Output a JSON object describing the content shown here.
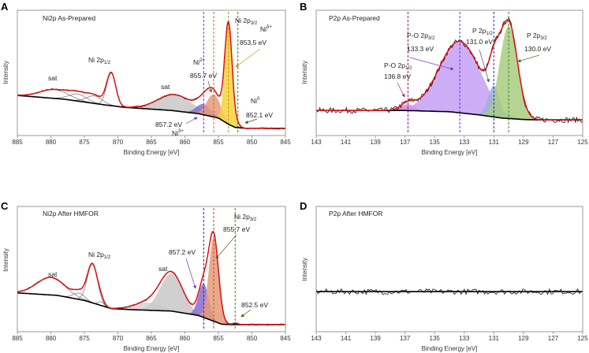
{
  "chart_data": [
    {
      "panel": "A",
      "type": "line",
      "title": "Ni2p As-Prepared",
      "xlabel": "Binding Energy [eV]",
      "ylabel": "Intensity",
      "xlim": [
        885,
        845
      ],
      "x_reversed": true,
      "xticks": [
        "885",
        "880",
        "875",
        "870",
        "865",
        "860",
        "855",
        "850",
        "845"
      ],
      "ylim": [
        0,
        1
      ],
      "background": [
        [
          885,
          0.32
        ],
        [
          878,
          0.29
        ],
        [
          872,
          0.245
        ],
        [
          869,
          0.225
        ],
        [
          862,
          0.2
        ],
        [
          858,
          0.175
        ],
        [
          855,
          0.14
        ],
        [
          853.5,
          0.09
        ],
        [
          852.5,
          0.065
        ],
        [
          851,
          0.058
        ],
        [
          845,
          0.057
        ]
      ],
      "components": [
        {
          "center": 879.5,
          "amp": 0.07,
          "fwhm": 5,
          "color": "#808080",
          "filled": false
        },
        {
          "center": 876,
          "amp": 0.055,
          "fwhm": 3.2,
          "color": "#808080",
          "filled": false
        },
        {
          "center": 873.5,
          "amp": 0.06,
          "fwhm": 2.8,
          "color": "#808080",
          "filled": false
        },
        {
          "center": 871,
          "amp": 0.26,
          "fwhm": 1.6,
          "color": "#808080",
          "filled": false
        },
        {
          "center": 861.5,
          "amp": 0.13,
          "fwhm": 6,
          "color": "#c8c8c8",
          "filled": true
        },
        {
          "center": 857.2,
          "amp": 0.085,
          "fwhm": 2.5,
          "color": "#8a6ad0",
          "filled": true
        },
        {
          "center": 855.7,
          "amp": 0.18,
          "fwhm": 2.4,
          "color": "#e89a78",
          "filled": true
        },
        {
          "center": 853.5,
          "amp": 0.8,
          "fwhm": 1.3,
          "color": "#f5d43a",
          "filled": true
        },
        {
          "center": 852.1,
          "amp": 0.02,
          "fwhm": 0.9,
          "color": "#a8d890",
          "filled": true
        }
      ],
      "markers": [
        {
          "x": 857.2,
          "color": "#7a3cc8"
        },
        {
          "x": 855.7,
          "color": "#d0703a"
        },
        {
          "x": 853.5,
          "color": "#c8901a"
        },
        {
          "x": 852.1,
          "color": "#4a8a30"
        }
      ],
      "annotations": {
        "p12": {
          "main": "Ni 2p",
          "sub": "1/2"
        },
        "sat1": "sat",
        "sat2": "sat",
        "ni2": {
          "main": "Ni",
          "sup": "2+"
        },
        "e8557": "855.7 eV",
        "p32": {
          "main": "Ni 2p",
          "sub": "3/2"
        },
        "nid": {
          "main": "Ni",
          "sup": "δ+"
        },
        "e8535": "853.5 eV",
        "ni0": {
          "main": "Ni",
          "sup": "0"
        },
        "e8521": "852.1 eV",
        "e8572": "857.2 eV",
        "ni3": {
          "main": "Ni",
          "sup": "3+"
        }
      },
      "colors": {
        "e8557": "#a0522d",
        "e8535": "#c8901a",
        "e8521": "#4a6a20",
        "e8572": "#7030c0"
      }
    },
    {
      "panel": "B",
      "type": "line",
      "title": "P2p As-Prepared",
      "xlabel": "Binding Energy [eV]",
      "ylabel": "Intensity",
      "xlim": [
        143,
        125
      ],
      "x_reversed": true,
      "xticks": [
        "143",
        "141",
        "139",
        "137",
        "135",
        "133",
        "131",
        "129",
        "127",
        "125"
      ],
      "ylim": [
        0,
        1
      ],
      "background": [
        [
          143,
          0.2
        ],
        [
          137,
          0.2
        ],
        [
          134,
          0.19
        ],
        [
          132,
          0.165
        ],
        [
          130.5,
          0.14
        ],
        [
          129,
          0.128
        ],
        [
          128,
          0.125
        ],
        [
          125,
          0.125
        ]
      ],
      "components": [
        {
          "center": 136.8,
          "amp": 0.05,
          "fwhm": 1.1,
          "color": "#e080e0",
          "filled": true
        },
        {
          "center": 133.3,
          "amp": 0.57,
          "fwhm": 3.3,
          "color": "#c4a0f4",
          "filled": true
        },
        {
          "center": 131.0,
          "amp": 0.25,
          "fwhm": 0.9,
          "color": "#9ab0e0",
          "filled": true
        },
        {
          "center": 130.0,
          "amp": 0.74,
          "fwhm": 1.4,
          "color": "#a8cc80",
          "filled": true
        }
      ],
      "markers": [
        {
          "x": 136.8,
          "color": "#a0208a"
        },
        {
          "x": 133.3,
          "color": "#7a3cd8"
        },
        {
          "x": 131.0,
          "color": "#2a40b0"
        },
        {
          "x": 130.0,
          "color": "#4a8a30"
        }
      ],
      "annotations": {
        "po32": {
          "main": "P-O 2p",
          "sub": "3/2"
        },
        "e1333": "133.3 eV",
        "p12": {
          "main": "P 2p",
          "sub": "1/2"
        },
        "e1310": "131.0 eV",
        "p32": {
          "main": "P 2p",
          "sub": "3/2"
        },
        "e1300": "130.0 eV",
        "po12": {
          "main": "P-O 2p",
          "sub": "1/2"
        },
        "e1368": "136.8 eV"
      },
      "colors": {
        "e1333": "#8040d0",
        "e1310": "#3050b0",
        "e1300": "#5a8020",
        "e1368": "#a0208a"
      }
    },
    {
      "panel": "C",
      "type": "line",
      "title": "Ni2p After HMFOR",
      "xlabel": "Binding Energy [eV]",
      "ylabel": "Intensity",
      "xlim": [
        885,
        845
      ],
      "x_reversed": true,
      "xticks": [
        "885",
        "880",
        "875",
        "870",
        "865",
        "860",
        "855",
        "850",
        "845"
      ],
      "ylim": [
        0,
        1
      ],
      "background": [
        [
          885,
          0.31
        ],
        [
          879,
          0.29
        ],
        [
          875,
          0.25
        ],
        [
          871,
          0.185
        ],
        [
          868,
          0.176
        ],
        [
          862,
          0.165
        ],
        [
          858,
          0.13
        ],
        [
          856,
          0.09
        ],
        [
          854.5,
          0.06
        ],
        [
          853,
          0.057
        ],
        [
          845,
          0.057
        ]
      ],
      "components": [
        {
          "center": 880,
          "amp": 0.14,
          "fwhm": 5,
          "color": "#808080",
          "filled": false
        },
        {
          "center": 875.8,
          "amp": 0.05,
          "fwhm": 2,
          "color": "#808080",
          "filled": false
        },
        {
          "center": 873.8,
          "amp": 0.31,
          "fwhm": 1.8,
          "color": "#808080",
          "filled": false
        },
        {
          "center": 872.5,
          "amp": 0.03,
          "fwhm": 1,
          "color": "#808080",
          "filled": false
        },
        {
          "center": 865.5,
          "amp": 0.06,
          "fwhm": 5,
          "color": "#d4d4d4",
          "filled": true
        },
        {
          "center": 862,
          "amp": 0.3,
          "fwhm": 4,
          "color": "#c8c8c8",
          "filled": true
        },
        {
          "center": 857.2,
          "amp": 0.27,
          "fwhm": 1.8,
          "color": "#8a6ad0",
          "filled": true
        },
        {
          "center": 855.7,
          "amp": 0.67,
          "fwhm": 1.7,
          "color": "#e89a78",
          "filled": true
        },
        {
          "center": 852.5,
          "amp": 0.012,
          "fwhm": 1,
          "color": "#a8d890",
          "filled": true
        }
      ],
      "markers": [
        {
          "x": 857.2,
          "color": "#4a2aa0"
        },
        {
          "x": 855.7,
          "color": "#b06030"
        },
        {
          "x": 852.5,
          "color": "#4a8a30"
        }
      ],
      "annotations": {
        "p12": {
          "main": "Ni 2p",
          "sub": "1/2"
        },
        "sat1": "sat",
        "sat2": "sat",
        "e8572": "857.2 eV",
        "p32": {
          "main": "Ni 2p",
          "sub": "3/2"
        },
        "e8557": "855.7 eV",
        "e8525": "852.5 eV"
      },
      "colors": {
        "e8572": "#7030c0",
        "e8557": "#a0522d",
        "e8525": "#4a6a20"
      }
    },
    {
      "panel": "D",
      "type": "line",
      "title": "P2p After HMFOR",
      "xlabel": "Binding Energy [eV]",
      "ylabel": "Intensity",
      "xlim": [
        143,
        125
      ],
      "x_reversed": true,
      "xticks": [
        "143",
        "141",
        "139",
        "137",
        "135",
        "133",
        "131",
        "129",
        "127",
        "125"
      ],
      "ylim": [
        0,
        1
      ],
      "background": [
        [
          143,
          0.32
        ],
        [
          125,
          0.32
        ]
      ],
      "components": [],
      "markers": [],
      "annotations": {},
      "colors": {}
    }
  ],
  "colors": {
    "envelope": "#e01010",
    "data": "#111111",
    "background": "#000000"
  }
}
